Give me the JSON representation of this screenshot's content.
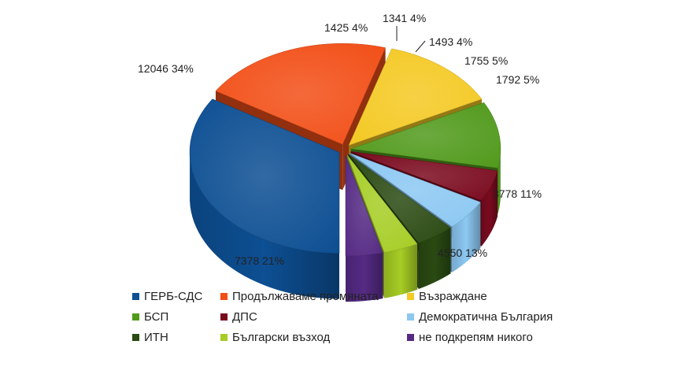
{
  "chart_data": {
    "type": "pie",
    "title": "",
    "slices": [
      {
        "name": "ГЕРБ-СДС",
        "value": 12046,
        "percent": "34%",
        "label": "12046 34%",
        "color": "#0d4f93"
      },
      {
        "name": "Продължаваме промяната",
        "value": 7378,
        "percent": "21%",
        "label": "7378 21%",
        "color": "#f24f17"
      },
      {
        "name": "Възраждане",
        "value": 4550,
        "percent": "13%",
        "label": "4550 13%",
        "color": "#f4c923"
      },
      {
        "name": "БСП",
        "value": 3778,
        "percent": "11%",
        "label": "3778 11%",
        "color": "#519a1c"
      },
      {
        "name": "ДПС",
        "value": 1792,
        "percent": "5%",
        "label": "1792 5%",
        "color": "#7a0a1e"
      },
      {
        "name": "Демократична България",
        "value": 1755,
        "percent": "5%",
        "label": "1755 5%",
        "color": "#8cc8f2"
      },
      {
        "name": "ИТН",
        "value": 1493,
        "percent": "4%",
        "label": "1493 4%",
        "color": "#2a4a12"
      },
      {
        "name": "Български възход",
        "value": 1341,
        "percent": "4%",
        "label": "1341 4%",
        "color": "#a6cd25"
      },
      {
        "name": "не подкрепям никого",
        "value": 1425,
        "percent": "4%",
        "label": "1425 4%",
        "color": "#552a84"
      }
    ],
    "exploded": true,
    "style": "3d",
    "legend_position": "bottom",
    "legend_columns": 3
  }
}
